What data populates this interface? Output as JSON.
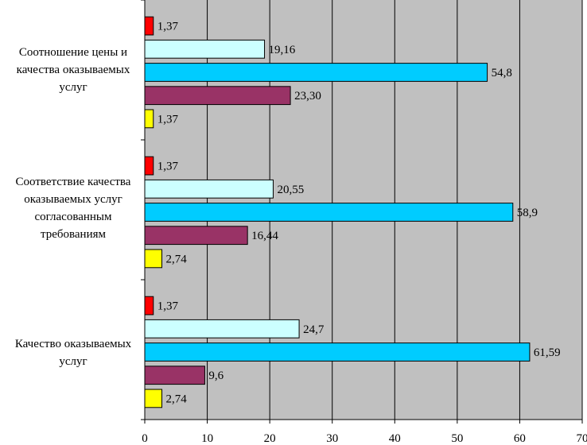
{
  "chart_data": {
    "type": "bar",
    "orientation": "horizontal",
    "categories": [
      "Соотношение цены и качества оказываемых услуг",
      "Соответствие качества оказываемых услуг согласованным требованиям",
      "Качество оказываемых услуг"
    ],
    "series": [
      {
        "color": "#ff0000",
        "values": [
          1.37,
          1.37,
          1.37
        ],
        "labels": [
          "1,37",
          "1,37",
          "1,37"
        ]
      },
      {
        "color": "#ccffff",
        "values": [
          19.16,
          20.55,
          24.7
        ],
        "labels": [
          "19,16",
          "20,55",
          "24,7"
        ]
      },
      {
        "color": "#00ccff",
        "values": [
          54.8,
          58.9,
          61.59
        ],
        "labels": [
          "54,8",
          "58,9",
          "61,59"
        ]
      },
      {
        "color": "#993366",
        "values": [
          23.3,
          16.44,
          9.6
        ],
        "labels": [
          "23,30",
          "16,44",
          "9,6"
        ]
      },
      {
        "color": "#ffff00",
        "values": [
          1.37,
          2.74,
          2.74
        ],
        "labels": [
          "1,37",
          "2,74",
          "2,74"
        ]
      }
    ],
    "xlim": [
      0,
      70
    ],
    "xticks": [
      "0",
      "10",
      "20",
      "30",
      "40",
      "50",
      "60",
      "70"
    ],
    "grid": true,
    "plot_background": "#c0c0c0",
    "legend": "none"
  }
}
